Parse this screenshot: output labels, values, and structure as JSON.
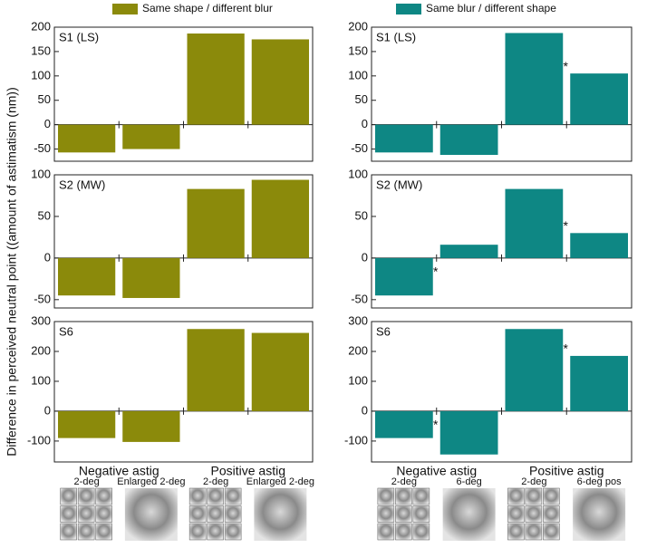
{
  "legend": [
    {
      "name": "Same shape / different blur",
      "color": "#8b8a0b"
    },
    {
      "name": "Same blur / different shape",
      "color": "#0e8784"
    }
  ],
  "y_label": "Difference in perceived neutral point ((amount of astimatism (nm))",
  "columns": [
    {
      "group_labels": [
        "Negative astig",
        "Positive astig"
      ],
      "image_labels": [
        "2-deg",
        "Enlarged 2-deg",
        "2-deg",
        "Enlarged 2-deg"
      ]
    },
    {
      "group_labels": [
        "Negative astig",
        "Positive astig"
      ],
      "image_labels": [
        "2-deg",
        "6-deg",
        "2-deg",
        "6-deg pos"
      ]
    }
  ],
  "chart_data": [
    {
      "type": "bar",
      "label": "S1 (LS)",
      "color": "#8b8a0b",
      "values": [
        -57,
        -50,
        187,
        175
      ],
      "ylim": [
        -75,
        200
      ],
      "yticks": [
        200,
        150,
        100,
        50,
        0,
        -50
      ]
    },
    {
      "type": "bar",
      "label": "S2 (MW)",
      "color": "#8b8a0b",
      "values": [
        -45,
        -48,
        83,
        94
      ],
      "ylim": [
        -60,
        100
      ],
      "yticks": [
        100,
        50,
        0,
        -50
      ]
    },
    {
      "type": "bar",
      "label": "S6",
      "color": "#8b8a0b",
      "values": [
        -90,
        -103,
        275,
        262
      ],
      "ylim": [
        -170,
        300
      ],
      "yticks": [
        300,
        200,
        100,
        0,
        -100
      ]
    },
    {
      "type": "bar",
      "label": "S1 (LS)",
      "color": "#0e8784",
      "values": [
        -57,
        -62,
        188,
        105
      ],
      "ylim": [
        -75,
        200
      ],
      "yticks": [
        200,
        150,
        100,
        50,
        0,
        -50
      ],
      "annotations": [
        {
          "text": "*",
          "bar": 3
        }
      ]
    },
    {
      "type": "bar",
      "label": "S2 (MW)",
      "color": "#0e8784",
      "values": [
        -45,
        16,
        83,
        30
      ],
      "ylim": [
        -60,
        100
      ],
      "yticks": [
        100,
        50,
        0,
        -50
      ],
      "annotations": [
        {
          "text": "*",
          "bar": 1
        },
        {
          "text": "*",
          "bar": 3
        }
      ]
    },
    {
      "type": "bar",
      "label": "S6",
      "color": "#0e8784",
      "values": [
        -90,
        -145,
        275,
        185
      ],
      "ylim": [
        -170,
        300
      ],
      "yticks": [
        300,
        200,
        100,
        0,
        -100
      ],
      "annotations": [
        {
          "text": "*",
          "bar": 1
        },
        {
          "text": "*",
          "bar": 3
        }
      ]
    }
  ]
}
